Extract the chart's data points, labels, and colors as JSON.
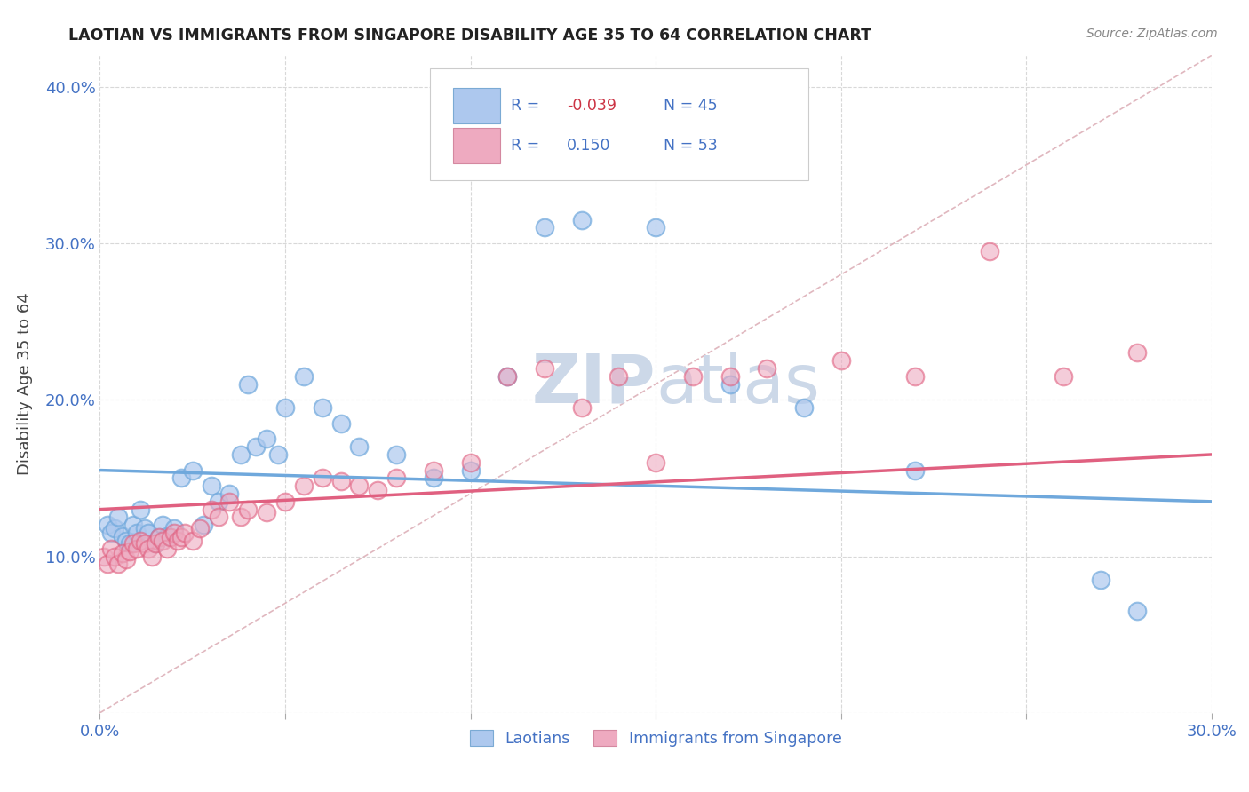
{
  "title": "LAOTIAN VS IMMIGRANTS FROM SINGAPORE DISABILITY AGE 35 TO 64 CORRELATION CHART",
  "source": "Source: ZipAtlas.com",
  "ylabel_label": "Disability Age 35 to 64",
  "xlim": [
    0.0,
    0.3
  ],
  "ylim": [
    0.0,
    0.42
  ],
  "xticks": [
    0.0,
    0.05,
    0.1,
    0.15,
    0.2,
    0.25,
    0.3
  ],
  "yticks": [
    0.0,
    0.1,
    0.2,
    0.3,
    0.4
  ],
  "xtick_labels": [
    "0.0%",
    "",
    "",
    "",
    "",
    "",
    "30.0%"
  ],
  "ytick_labels": [
    "",
    "10.0%",
    "20.0%",
    "30.0%",
    "40.0%"
  ],
  "lao_color": "#6fa8dc",
  "sin_color": "#e06080",
  "lao_face": "#adc8ee",
  "sin_face": "#eeaac0",
  "diag_color": "#ddb0b8",
  "background_color": "#ffffff",
  "watermark_color": "#ccd8e8",
  "lao_trend_start_y": 0.155,
  "lao_trend_end_y": 0.135,
  "sin_trend_start_y": 0.13,
  "sin_trend_end_y": 0.165,
  "lao_points_x": [
    0.002,
    0.003,
    0.004,
    0.005,
    0.006,
    0.007,
    0.008,
    0.009,
    0.01,
    0.011,
    0.012,
    0.013,
    0.015,
    0.016,
    0.017,
    0.018,
    0.02,
    0.022,
    0.025,
    0.028,
    0.03,
    0.032,
    0.035,
    0.038,
    0.04,
    0.042,
    0.045,
    0.048,
    0.05,
    0.055,
    0.06,
    0.065,
    0.07,
    0.08,
    0.09,
    0.1,
    0.11,
    0.12,
    0.13,
    0.15,
    0.17,
    0.19,
    0.22,
    0.27,
    0.28
  ],
  "lao_points_y": [
    0.12,
    0.115,
    0.118,
    0.125,
    0.113,
    0.11,
    0.108,
    0.12,
    0.115,
    0.13,
    0.118,
    0.115,
    0.108,
    0.112,
    0.12,
    0.113,
    0.118,
    0.15,
    0.155,
    0.12,
    0.145,
    0.135,
    0.14,
    0.165,
    0.21,
    0.17,
    0.175,
    0.165,
    0.195,
    0.215,
    0.195,
    0.185,
    0.17,
    0.165,
    0.15,
    0.155,
    0.215,
    0.31,
    0.315,
    0.31,
    0.21,
    0.195,
    0.155,
    0.085,
    0.065
  ],
  "sin_points_x": [
    0.001,
    0.002,
    0.003,
    0.004,
    0.005,
    0.006,
    0.007,
    0.008,
    0.009,
    0.01,
    0.011,
    0.012,
    0.013,
    0.014,
    0.015,
    0.016,
    0.017,
    0.018,
    0.019,
    0.02,
    0.021,
    0.022,
    0.023,
    0.025,
    0.027,
    0.03,
    0.032,
    0.035,
    0.038,
    0.04,
    0.045,
    0.05,
    0.055,
    0.06,
    0.065,
    0.07,
    0.075,
    0.08,
    0.09,
    0.1,
    0.11,
    0.12,
    0.13,
    0.14,
    0.15,
    0.16,
    0.17,
    0.18,
    0.2,
    0.22,
    0.24,
    0.26,
    0.28
  ],
  "sin_points_y": [
    0.1,
    0.095,
    0.105,
    0.1,
    0.095,
    0.102,
    0.098,
    0.103,
    0.108,
    0.105,
    0.11,
    0.108,
    0.105,
    0.1,
    0.108,
    0.112,
    0.11,
    0.105,
    0.112,
    0.115,
    0.11,
    0.112,
    0.115,
    0.11,
    0.118,
    0.13,
    0.125,
    0.135,
    0.125,
    0.13,
    0.128,
    0.135,
    0.145,
    0.15,
    0.148,
    0.145,
    0.142,
    0.15,
    0.155,
    0.16,
    0.215,
    0.22,
    0.195,
    0.215,
    0.16,
    0.215,
    0.215,
    0.22,
    0.225,
    0.215,
    0.295,
    0.215,
    0.23
  ]
}
